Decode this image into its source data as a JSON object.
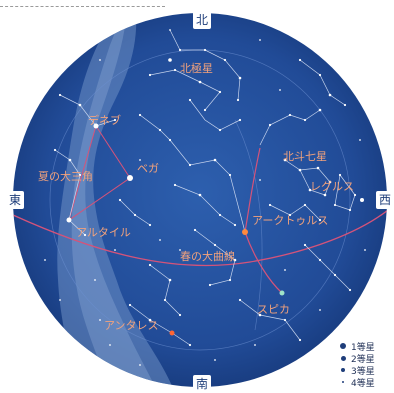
{
  "cardinals": {
    "north": "北",
    "south": "南",
    "east": "東",
    "west": "西"
  },
  "labels": {
    "polaris": "北極星",
    "deneb": "デネブ",
    "vega": "ベガ",
    "summer_triangle": "夏の大三角",
    "altair": "アルタイル",
    "big_dipper": "北斗七星",
    "regulus": "レグルス",
    "arcturus": "アークトゥルス",
    "spring_curve": "春の大曲線",
    "spica": "スピカ",
    "antares": "アンタレス"
  },
  "legend": [
    {
      "label": "1等星"
    },
    {
      "label": "2等星"
    },
    {
      "label": "3等星"
    },
    {
      "label": "4等星"
    }
  ],
  "colors": {
    "sky": "#234e9c",
    "milky_way": "#6e8fc4",
    "label": "#f2a27c",
    "ecliptic": "#d4537a",
    "arcturus_star": "#ff8a3d",
    "spica_star": "#9fe3c8",
    "antares_star": "#ff6633"
  }
}
